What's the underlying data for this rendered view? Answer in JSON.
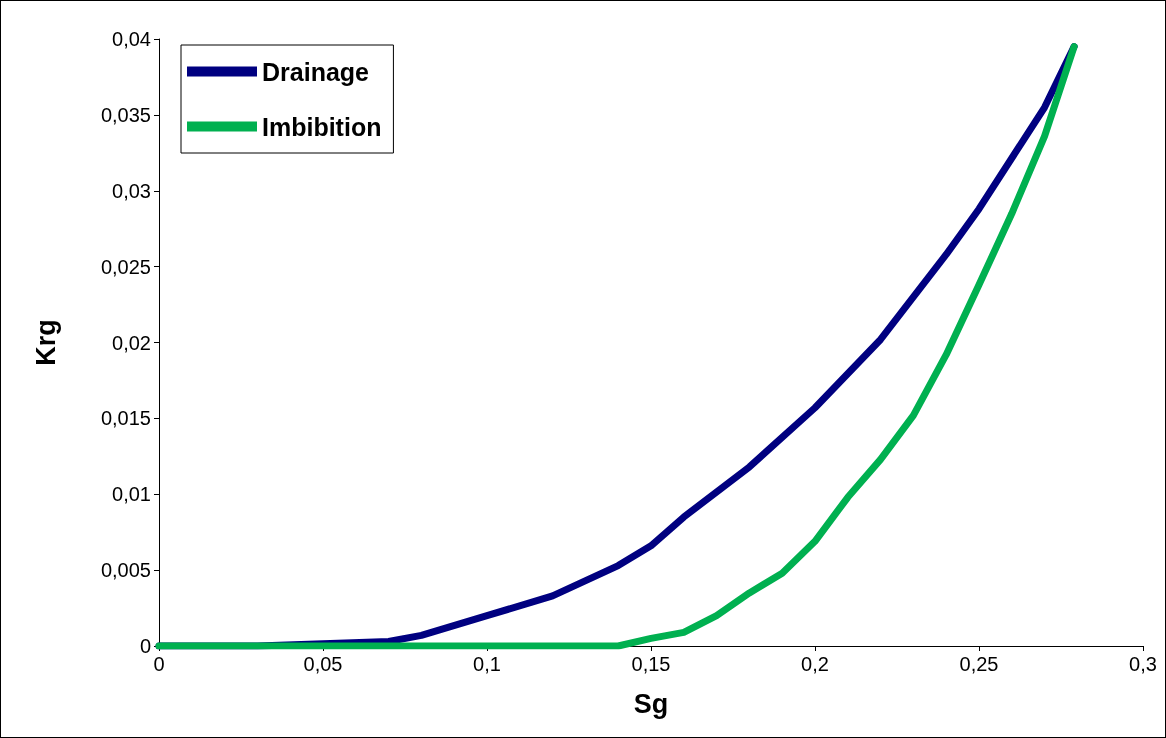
{
  "chart_data": {
    "type": "line",
    "xlabel": "Sg",
    "ylabel": "Krg",
    "xlim": [
      0,
      0.3
    ],
    "xticks": [
      0,
      {
        "value": 0.05,
        "label": "0,05"
      },
      {
        "value": 0.1,
        "label": "0,1"
      },
      {
        "value": 0.15,
        "label": "0,15"
      },
      {
        "value": 0.2,
        "label": "0,2"
      },
      {
        "value": 0.25,
        "label": "0,25"
      },
      {
        "value": 0.3,
        "label": "0,3"
      }
    ],
    "ylim": [
      0,
      0.04
    ],
    "yticks": [
      0,
      {
        "value": 0.005,
        "label": "0,005"
      },
      {
        "value": 0.01,
        "label": "0,01"
      },
      {
        "value": 0.015,
        "label": "0,015"
      },
      {
        "value": 0.02,
        "label": "0,02"
      },
      {
        "value": 0.025,
        "label": "0,025"
      },
      {
        "value": 0.03,
        "label": "0,03"
      },
      {
        "value": 0.035,
        "label": "0,035"
      },
      {
        "value": 0.04,
        "label": "0,04"
      }
    ],
    "grid": false,
    "legend": "top left",
    "marker": "none",
    "line_style": "solid",
    "series": [
      {
        "name": "Drainage",
        "color": "#000080",
        "x": [
          0,
          0.03,
          0.07,
          0.08,
          0.1,
          0.12,
          0.14,
          0.15,
          0.16,
          0.18,
          0.2,
          0.22,
          0.24,
          0.25,
          0.27,
          0.279
        ],
        "values": [
          0,
          0,
          0.0003,
          0.0007,
          0.002,
          0.0033,
          0.0053,
          0.0066,
          0.0085,
          0.0118,
          0.0157,
          0.0202,
          0.0258,
          0.0288,
          0.0355,
          0.0395
        ]
      },
      {
        "name": "Imbibition",
        "color": "#00b050",
        "x": [
          0,
          0.14,
          0.15,
          0.16,
          0.17,
          0.18,
          0.19,
          0.2,
          0.21,
          0.22,
          0.23,
          0.24,
          0.25,
          0.26,
          0.27,
          0.279
        ],
        "values": [
          0,
          0,
          0.0005,
          0.0009,
          0.002,
          0.0035,
          0.0048,
          0.0069,
          0.0098,
          0.0123,
          0.0152,
          0.0192,
          0.0238,
          0.0285,
          0.0336,
          0.0395
        ]
      }
    ]
  }
}
